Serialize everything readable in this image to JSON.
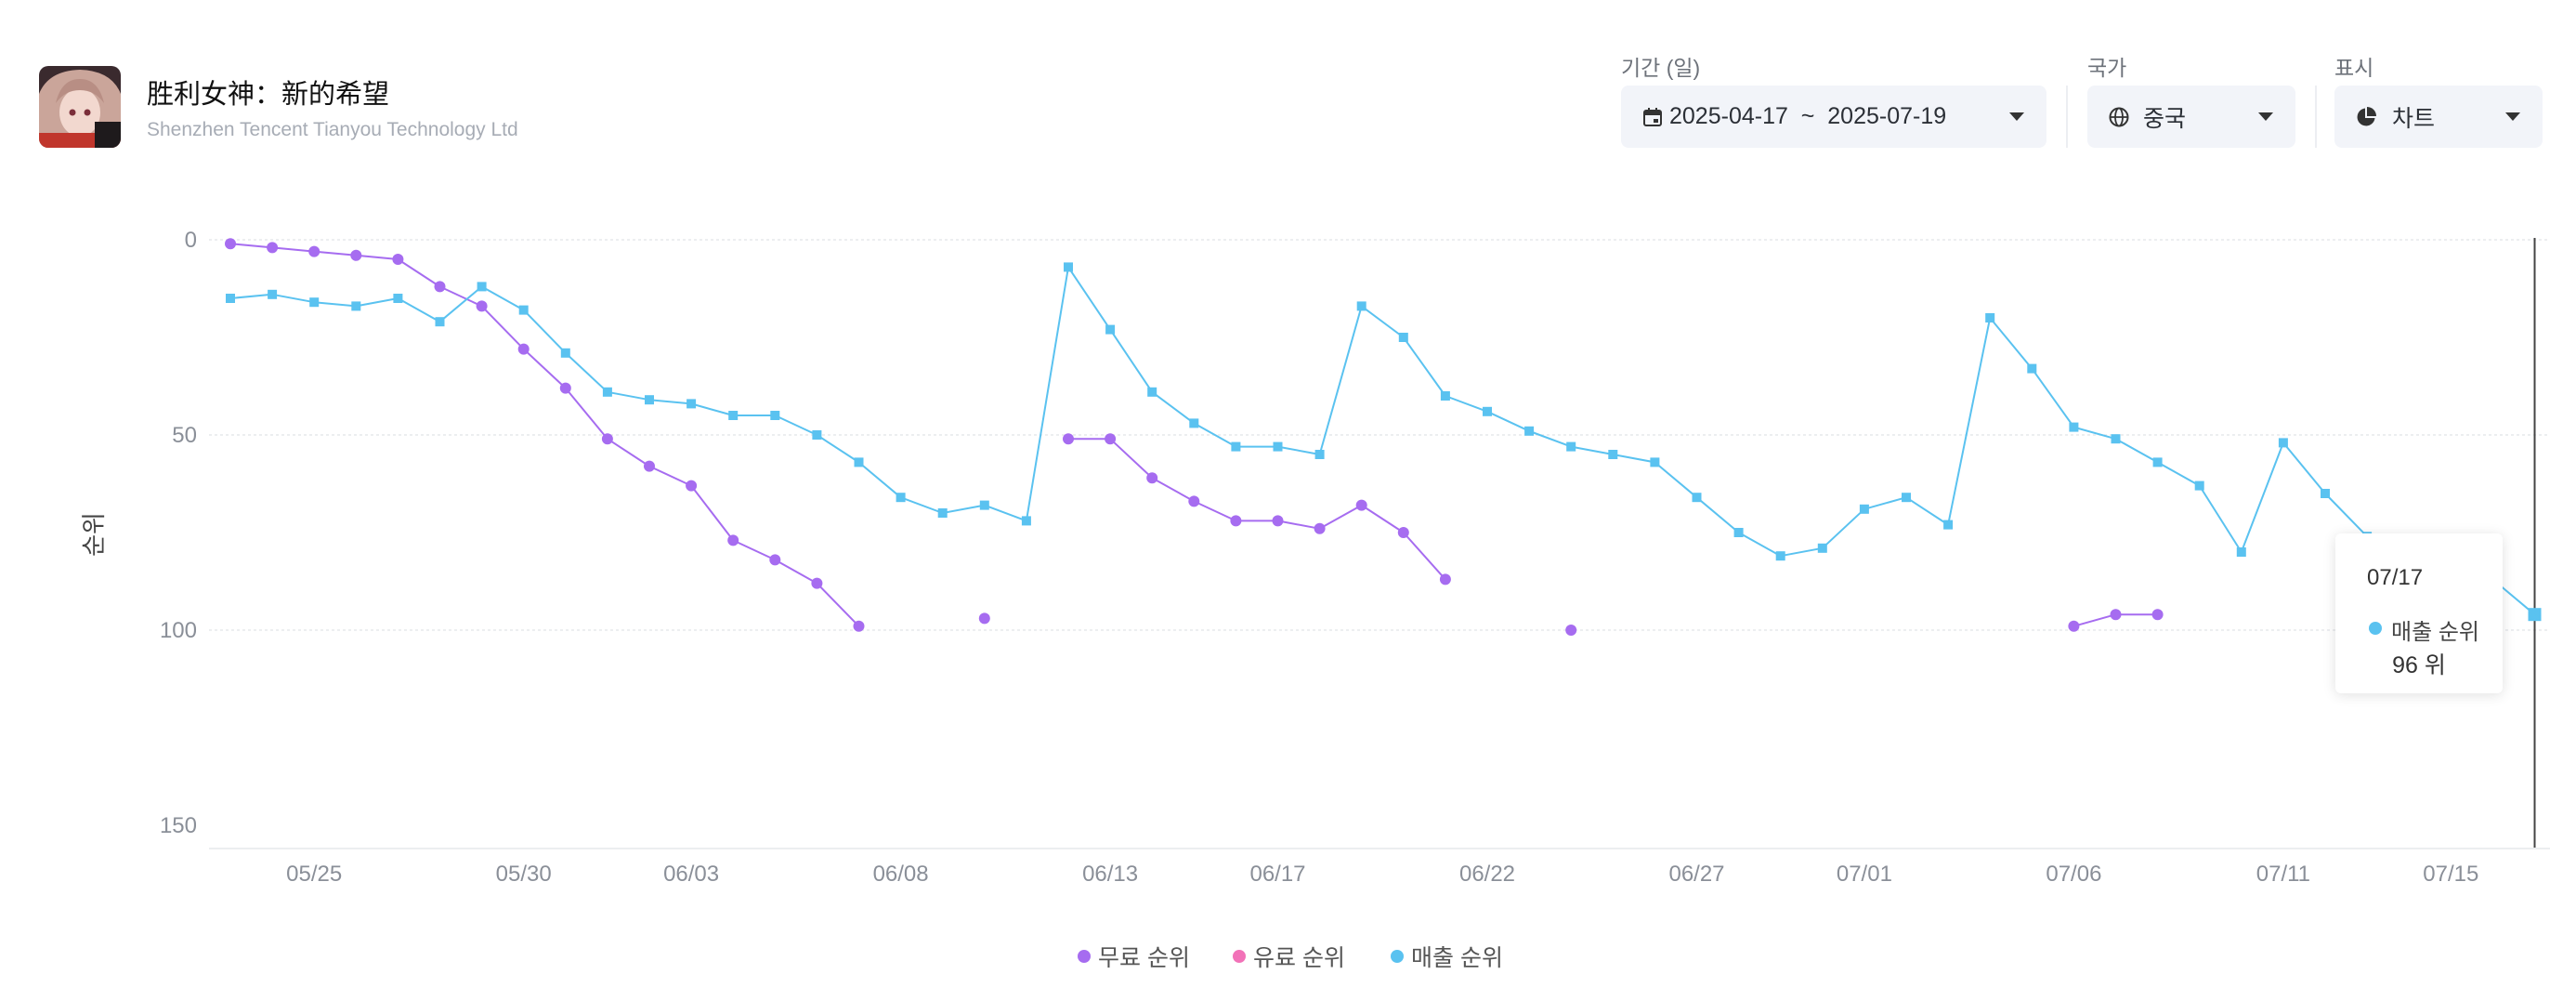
{
  "app": {
    "title": "胜利女神：新的希望",
    "company": "Shenzhen Tencent Tianyou Technology Ltd"
  },
  "controls": {
    "period_label": "기간 (일)",
    "period_value": "2025-04-17  ~  2025-07-19",
    "country_label": "국가",
    "country_value": "중국",
    "display_label": "표시",
    "display_value": "차트"
  },
  "colors": {
    "free": "#a66cf0",
    "paid": "#f272b8",
    "grossing": "#5ac2f0"
  },
  "tooltip": {
    "date": "07/17",
    "series": "매출 순위",
    "value": "96 위"
  },
  "legend": [
    {
      "name": "무료 순위",
      "color": "#a66cf0"
    },
    {
      "name": "유료 순위",
      "color": "#f272b8"
    },
    {
      "name": "매출 순위",
      "color": "#5ac2f0"
    }
  ],
  "chart_data": {
    "type": "line",
    "ylabel": "순위",
    "xlabel": "",
    "ylim": [
      0,
      150
    ],
    "y_inverted": true,
    "y_ticks": [
      0,
      50,
      100,
      150
    ],
    "x_tick_labels": [
      "05/25",
      "05/30",
      "06/03",
      "06/08",
      "06/13",
      "06/17",
      "06/22",
      "06/27",
      "07/01",
      "07/06",
      "07/11",
      "07/15"
    ],
    "x": [
      "05/23",
      "05/24",
      "05/25",
      "05/26",
      "05/27",
      "05/28",
      "05/29",
      "05/30",
      "05/31",
      "06/01",
      "06/02",
      "06/03",
      "06/04",
      "06/05",
      "06/06",
      "06/07",
      "06/08",
      "06/09",
      "06/10",
      "06/11",
      "06/12",
      "06/13",
      "06/14",
      "06/15",
      "06/16",
      "06/17",
      "06/18",
      "06/19",
      "06/20",
      "06/21",
      "06/22",
      "06/23",
      "06/24",
      "06/25",
      "06/26",
      "06/27",
      "06/28",
      "06/29",
      "06/30",
      "07/01",
      "07/02",
      "07/03",
      "07/04",
      "07/05",
      "07/06",
      "07/07",
      "07/08",
      "07/09",
      "07/10",
      "07/11",
      "07/12",
      "07/13",
      "07/14",
      "07/15",
      "07/16",
      "07/17"
    ],
    "series": [
      {
        "name": "무료 순위",
        "values": [
          1,
          2,
          3,
          4,
          5,
          12,
          17,
          28,
          38,
          51,
          58,
          63,
          77,
          82,
          88,
          99,
          null,
          null,
          97,
          null,
          51,
          51,
          61,
          67,
          72,
          72,
          74,
          68,
          75,
          87,
          null,
          null,
          100,
          null,
          null,
          null,
          null,
          null,
          null,
          null,
          null,
          null,
          null,
          null,
          99,
          96,
          96,
          null,
          null,
          null,
          null,
          null,
          null,
          null,
          null,
          null
        ]
      },
      {
        "name": "유료 순위",
        "values": [
          null,
          null,
          null,
          null,
          null,
          null,
          null,
          null,
          null,
          null,
          null,
          null,
          null,
          null,
          null,
          null,
          null,
          null,
          null,
          null,
          null,
          null,
          null,
          null,
          null,
          null,
          null,
          null,
          null,
          null,
          null,
          null,
          null,
          null,
          null,
          null,
          null,
          null,
          null,
          null,
          null,
          null,
          null,
          null,
          null,
          null,
          null,
          null,
          null,
          null,
          null,
          null,
          null,
          null,
          null,
          null
        ]
      },
      {
        "name": "매출 순위",
        "values": [
          15,
          14,
          16,
          17,
          15,
          21,
          12,
          18,
          29,
          39,
          41,
          42,
          45,
          45,
          50,
          57,
          66,
          70,
          68,
          72,
          7,
          23,
          39,
          47,
          53,
          53,
          55,
          17,
          25,
          40,
          44,
          49,
          53,
          55,
          57,
          66,
          75,
          81,
          79,
          69,
          66,
          73,
          20,
          33,
          48,
          51,
          57,
          63,
          80,
          52,
          65,
          76,
          81,
          84,
          87,
          96
        ]
      }
    ]
  }
}
